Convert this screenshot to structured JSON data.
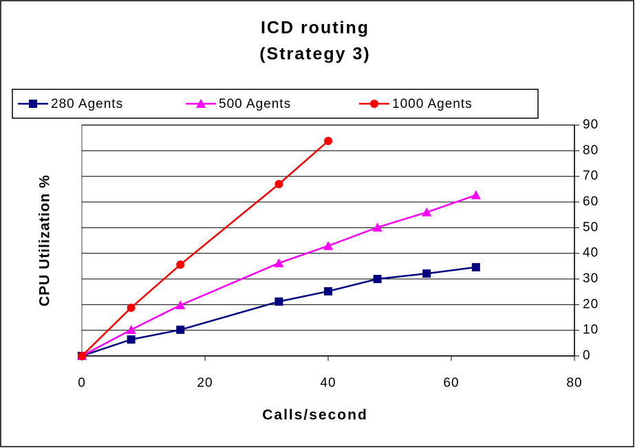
{
  "chart_data": {
    "type": "line",
    "title": "ICD routing",
    "subtitle": "(Strategy 3)",
    "xlabel": "Calls/second",
    "ylabel": "CPU Utilization %",
    "x": [
      0,
      8,
      16,
      32,
      40,
      48,
      56,
      64
    ],
    "series": [
      {
        "name": "280 Agents",
        "color": "#000080",
        "marker": "square",
        "values": [
          0,
          6.4,
          10.2,
          21.2,
          25.2,
          30,
          32.1,
          34.6
        ]
      },
      {
        "name": "500 Agents",
        "color": "#FF00FF",
        "marker": "triangle",
        "values": [
          0,
          10.2,
          19.8,
          36.2,
          42.9,
          50.1,
          56,
          62.7
        ]
      },
      {
        "name": "1000 Agents",
        "color": "#FF0000",
        "marker": "circle",
        "values": [
          0,
          18.8,
          35.6,
          67,
          83.8,
          null,
          null,
          null
        ]
      }
    ],
    "xlim": [
      0,
      80
    ],
    "xticks": [
      0,
      20,
      40,
      60,
      80
    ],
    "ylim": [
      0,
      90
    ],
    "yticks": [
      0,
      10,
      20,
      30,
      40,
      50,
      60,
      70,
      80,
      90
    ],
    "y_axis_side": "right",
    "grid": true,
    "legend": "top"
  }
}
